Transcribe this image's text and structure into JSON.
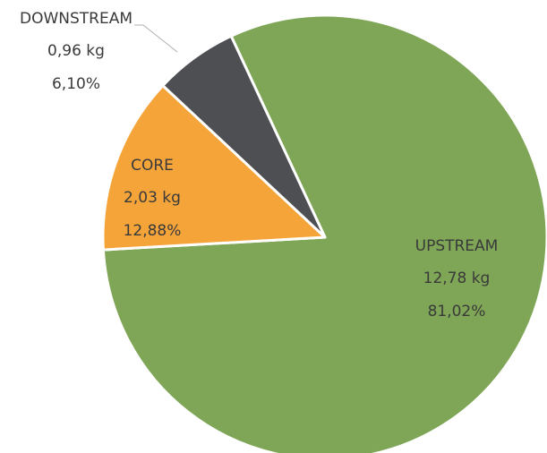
{
  "chart_data": {
    "type": "pie",
    "categories": [
      "UPSTREAM",
      "CORE",
      "DOWNSTREAM"
    ],
    "values": [
      12.78,
      2.03,
      0.96
    ],
    "value_labels": [
      "12,78 kg",
      "2,03 kg",
      "0,96 kg"
    ],
    "percentages": [
      81.02,
      12.88,
      6.1
    ],
    "percentage_labels": [
      "81,02%",
      "12,88%",
      "6,10%"
    ],
    "colors": [
      "#7ea656",
      "#f5a43a",
      "#4d4f53"
    ]
  }
}
